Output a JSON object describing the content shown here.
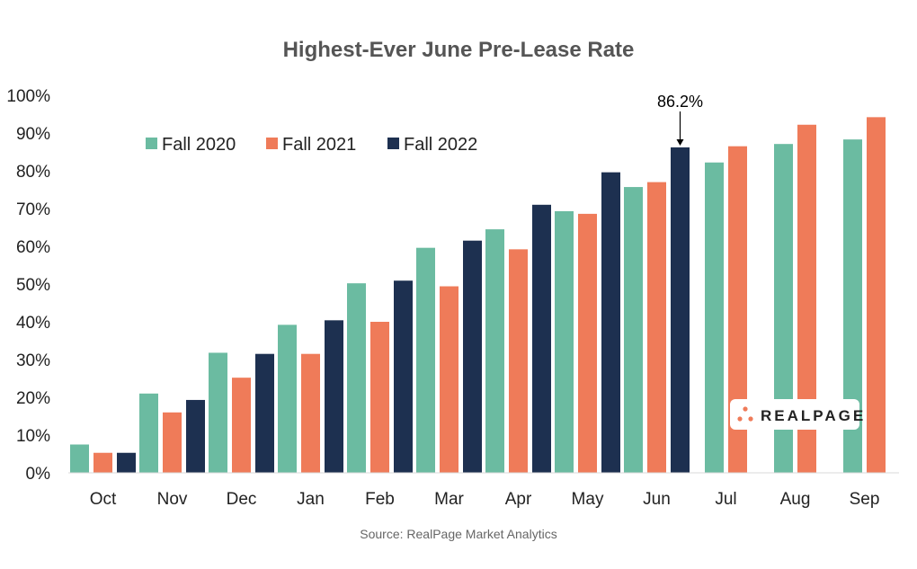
{
  "chart_data": {
    "type": "bar",
    "title": "Highest-Ever June Pre-Lease Rate",
    "xlabel": "",
    "ylabel": "",
    "ylim": [
      0,
      100
    ],
    "y_ticks": [
      "0%",
      "10%",
      "20%",
      "30%",
      "40%",
      "50%",
      "60%",
      "70%",
      "80%",
      "90%",
      "100%"
    ],
    "categories": [
      "Oct",
      "Nov",
      "Dec",
      "Jan",
      "Feb",
      "Mar",
      "Apr",
      "May",
      "Jun",
      "Jul",
      "Aug",
      "Sep"
    ],
    "series": [
      {
        "name": "Fall 2020",
        "color": "#6bbba1",
        "values": [
          7.5,
          21.0,
          31.8,
          39.2,
          50.2,
          59.6,
          64.5,
          69.3,
          75.7,
          82.2,
          87.1,
          88.3
        ]
      },
      {
        "name": "Fall 2021",
        "color": "#ef7b59",
        "values": [
          5.3,
          16.0,
          25.2,
          31.5,
          40.0,
          49.4,
          59.2,
          68.6,
          77.0,
          86.5,
          92.2,
          94.2
        ]
      },
      {
        "name": "Fall 2022",
        "color": "#1d3050",
        "values": [
          5.3,
          19.3,
          31.5,
          40.4,
          50.9,
          61.5,
          71.0,
          79.6,
          86.2,
          null,
          null,
          null
        ]
      }
    ],
    "legend_position": "top-left",
    "grid": false,
    "annotation": {
      "text": "86.2%",
      "series": "Fall 2022",
      "category": "Jun"
    }
  },
  "source": "Source: RealPage Market Analytics",
  "logo": {
    "text": "REALPAGE",
    "dot_color": "#ef7b59"
  }
}
